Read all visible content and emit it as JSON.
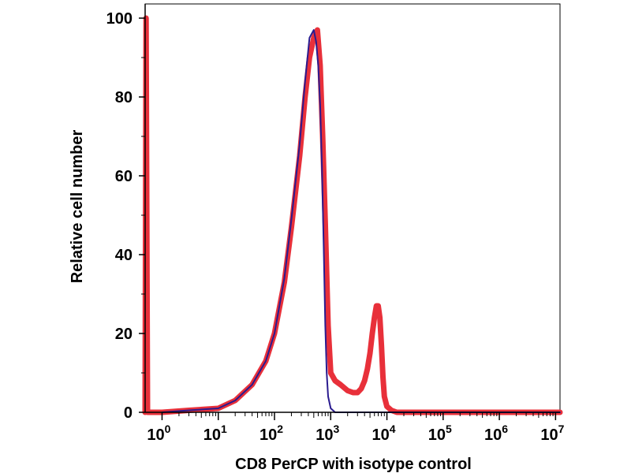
{
  "chart_data": {
    "type": "line",
    "title": "",
    "xlabel": "CD8 PerCP with isotype control",
    "ylabel": "Relative cell number",
    "x_scale": "log",
    "xlim": [
      0.5,
      12000000
    ],
    "ylim": [
      0,
      100
    ],
    "x_tick_labels": [
      {
        "base": "10",
        "exp": "0"
      },
      {
        "base": "10",
        "exp": "1"
      },
      {
        "base": "10",
        "exp": "2"
      },
      {
        "base": "10",
        "exp": "3"
      },
      {
        "base": "10",
        "exp": "4"
      },
      {
        "base": "10",
        "exp": "5"
      },
      {
        "base": "10",
        "exp": "6"
      },
      {
        "base": "10",
        "exp": "7"
      }
    ],
    "y_tick_labels": [
      "0",
      "20",
      "40",
      "60",
      "80",
      "100"
    ],
    "grid": false,
    "legend": "none",
    "series": [
      {
        "color": "#e8303a",
        "x": [
          0.5,
          0.52,
          0.55,
          1,
          3,
          10,
          20,
          40,
          70,
          100,
          150,
          200,
          280,
          350,
          420,
          500,
          580,
          650,
          720,
          800,
          900,
          1000,
          1200,
          1500,
          2000,
          2500,
          3000,
          3500,
          4000,
          4500,
          5000,
          5500,
          6000,
          6500,
          7000,
          7500,
          8000,
          8500,
          9000,
          10000,
          12000,
          15000,
          20000,
          100000,
          1000000,
          12000000
        ],
        "y": [
          0,
          100,
          0,
          0,
          0.5,
          1,
          3,
          7,
          13,
          20,
          33,
          47,
          65,
          80,
          90,
          95,
          97,
          88,
          70,
          48,
          22,
          10,
          8,
          7,
          5.5,
          5,
          5,
          6,
          8,
          11,
          15,
          20,
          24,
          27,
          27,
          24,
          17,
          9,
          4,
          1.5,
          0.5,
          0,
          0,
          0,
          0,
          0
        ]
      },
      {
        "color": "#2a1b8f",
        "x": [
          1,
          3,
          10,
          20,
          40,
          70,
          100,
          150,
          200,
          280,
          350,
          420,
          500,
          550,
          600,
          650,
          700,
          750,
          800,
          850,
          900,
          1000,
          1200,
          1500,
          12000000
        ],
        "y": [
          0,
          0.5,
          1,
          3,
          7,
          13,
          20,
          34,
          49,
          68,
          84,
          95,
          97,
          94,
          88,
          78,
          62,
          42,
          22,
          10,
          4,
          1,
          0,
          0,
          0
        ]
      }
    ]
  }
}
